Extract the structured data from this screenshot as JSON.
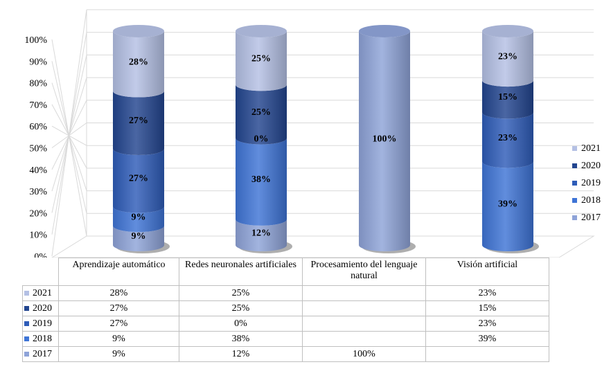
{
  "chart_data": {
    "type": "bar",
    "stacked": true,
    "percent_stacked": true,
    "style": "3d-cylinder",
    "categories": [
      "Aprendizaje automático",
      "Redes neuronales artificiales",
      "Procesamiento del lenguaje natural",
      "Visión artificial"
    ],
    "y_ticks": [
      "0%",
      "10%",
      "20%",
      "30%",
      "40%",
      "50%",
      "60%",
      "70%",
      "80%",
      "90%",
      "100%"
    ],
    "ylim": [
      0,
      100
    ],
    "legend_position": "right",
    "data_table": true,
    "series": [
      {
        "name": "2017",
        "color": "#8ea3d8",
        "values": [
          9,
          12,
          100,
          null
        ],
        "labels": [
          "9%",
          "12%",
          "100%",
          ""
        ]
      },
      {
        "name": "2018",
        "color": "#3e74d6",
        "values": [
          9,
          38,
          null,
          39
        ],
        "labels": [
          "9%",
          "38%",
          "",
          "39%"
        ]
      },
      {
        "name": "2019",
        "color": "#2e5cb8",
        "values": [
          27,
          0,
          null,
          23
        ],
        "labels": [
          "27%",
          "0%",
          "",
          "23%"
        ]
      },
      {
        "name": "2020",
        "color": "#22458f",
        "values": [
          27,
          25,
          null,
          15
        ],
        "labels": [
          "27%",
          "25%",
          "",
          "15%"
        ]
      },
      {
        "name": "2021",
        "color": "#b4c0e4",
        "values": [
          28,
          25,
          null,
          23
        ],
        "labels": [
          "28%",
          "25%",
          "",
          "23%"
        ]
      }
    ]
  }
}
